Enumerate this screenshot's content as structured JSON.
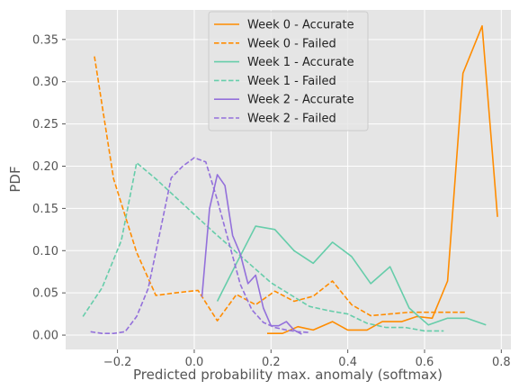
{
  "chart_data": {
    "type": "line",
    "xlabel": "Predicted probability max. anomaly (softmax)",
    "ylabel": "PDF",
    "xlim": [
      -0.335,
      0.825
    ],
    "ylim": [
      -0.017,
      0.385
    ],
    "xticks": [
      -0.2,
      0.0,
      0.2,
      0.4,
      0.6,
      0.8
    ],
    "yticks": [
      0.0,
      0.05,
      0.1,
      0.15,
      0.2,
      0.25,
      0.3,
      0.35
    ],
    "xtick_labels": [
      "−0.2",
      "0.0",
      "0.2",
      "0.4",
      "0.6",
      "0.8"
    ],
    "ytick_labels": [
      "0.00",
      "0.05",
      "0.10",
      "0.15",
      "0.20",
      "0.25",
      "0.30",
      "0.35"
    ],
    "grid": true,
    "legend_position": "top-center",
    "series": [
      {
        "name": "Week 0 - Accurate",
        "color": "#ff8c00",
        "dash": "solid",
        "x": [
          0.19,
          0.23,
          0.27,
          0.31,
          0.36,
          0.4,
          0.45,
          0.49,
          0.54,
          0.58,
          0.62,
          0.66,
          0.7,
          0.75,
          0.79
        ],
        "y": [
          0.002,
          0.002,
          0.01,
          0.006,
          0.016,
          0.006,
          0.006,
          0.016,
          0.016,
          0.022,
          0.02,
          0.064,
          0.31,
          0.366,
          0.14
        ]
      },
      {
        "name": "Week 0 - Failed",
        "color": "#ff8c00",
        "dash": "dashed",
        "x": [
          -0.26,
          -0.21,
          -0.15,
          -0.1,
          -0.05,
          0.01,
          0.06,
          0.11,
          0.16,
          0.21,
          0.26,
          0.31,
          0.36,
          0.41,
          0.46,
          0.51,
          0.56,
          0.61,
          0.66,
          0.71
        ],
        "y": [
          0.33,
          0.185,
          0.098,
          0.047,
          0.05,
          0.053,
          0.017,
          0.048,
          0.036,
          0.052,
          0.04,
          0.046,
          0.064,
          0.036,
          0.023,
          0.025,
          0.027,
          0.027,
          0.027,
          0.027
        ]
      },
      {
        "name": "Week 1 - Accurate",
        "color": "#66cdaa",
        "dash": "solid",
        "x": [
          0.06,
          0.11,
          0.16,
          0.21,
          0.26,
          0.31,
          0.36,
          0.41,
          0.46,
          0.51,
          0.56,
          0.61,
          0.66,
          0.71,
          0.76
        ],
        "y": [
          0.04,
          0.085,
          0.129,
          0.125,
          0.1,
          0.085,
          0.11,
          0.093,
          0.061,
          0.081,
          0.032,
          0.012,
          0.02,
          0.02,
          0.012
        ]
      },
      {
        "name": "Week 1 - Failed",
        "color": "#66cdaa",
        "dash": "dashed",
        "x": [
          -0.29,
          -0.24,
          -0.19,
          -0.15,
          -0.1,
          -0.05,
          0.0,
          0.05,
          0.1,
          0.15,
          0.2,
          0.25,
          0.3,
          0.35,
          0.4,
          0.45,
          0.5,
          0.55,
          0.6,
          0.65
        ],
        "y": [
          0.022,
          0.056,
          0.112,
          0.204,
          0.185,
          0.164,
          0.143,
          0.122,
          0.102,
          0.082,
          0.062,
          0.048,
          0.034,
          0.029,
          0.025,
          0.014,
          0.009,
          0.009,
          0.005,
          0.005
        ]
      },
      {
        "name": "Week 2 - Accurate",
        "color": "#9370db",
        "dash": "solid",
        "x": [
          0.02,
          0.04,
          0.06,
          0.08,
          0.1,
          0.12,
          0.14,
          0.16,
          0.18,
          0.2,
          0.22,
          0.24,
          0.26,
          0.28
        ],
        "y": [
          0.045,
          0.15,
          0.19,
          0.177,
          0.118,
          0.096,
          0.061,
          0.071,
          0.032,
          0.011,
          0.011,
          0.016,
          0.006,
          0.001
        ]
      },
      {
        "name": "Week 2 - Failed",
        "color": "#9370db",
        "dash": "dashed",
        "x": [
          -0.27,
          -0.24,
          -0.21,
          -0.18,
          -0.15,
          -0.12,
          -0.09,
          -0.06,
          -0.03,
          0.0,
          0.03,
          0.06,
          0.09,
          0.12,
          0.15,
          0.18,
          0.21,
          0.24,
          0.27,
          0.3
        ],
        "y": [
          0.004,
          0.002,
          0.002,
          0.004,
          0.022,
          0.055,
          0.12,
          0.186,
          0.2,
          0.21,
          0.205,
          0.16,
          0.11,
          0.06,
          0.03,
          0.015,
          0.009,
          0.006,
          0.004,
          0.003
        ]
      }
    ]
  }
}
